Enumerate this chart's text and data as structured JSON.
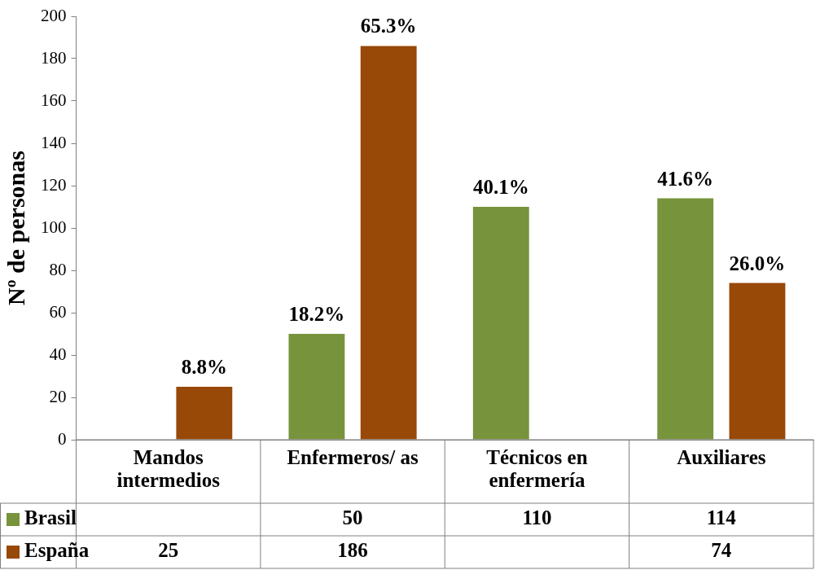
{
  "chart_data": {
    "type": "bar",
    "ylabel": "Nº de personas",
    "categories": [
      "Mandos intermedios",
      "Enfermeros/ as",
      "Técnicos en enfermería",
      "Auxiliares"
    ],
    "series": [
      {
        "name": "Brasil",
        "color": "#77933c",
        "values": [
          null,
          50,
          110,
          114
        ]
      },
      {
        "name": "España",
        "color": "#984807",
        "values": [
          25,
          186,
          null,
          74
        ]
      }
    ],
    "annotations": [
      "8.8%",
      "18.2%",
      "65.3%",
      "40.1%",
      "41.6%",
      "26.0%"
    ],
    "ylim": [
      0,
      200
    ],
    "yticks": [
      0,
      20,
      40,
      60,
      80,
      100,
      120,
      140,
      160,
      180,
      200
    ],
    "grid": false,
    "legend": "bottom left",
    "data_labels": true
  }
}
